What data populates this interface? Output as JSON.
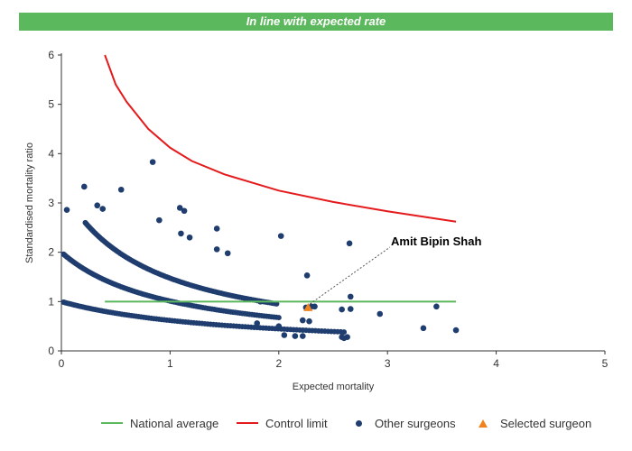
{
  "banner": {
    "text": "In line with expected rate",
    "color": "#5cb85c"
  },
  "colors": {
    "national_average": "#5cb85c",
    "control_limit": "#e41a1c",
    "other_surgeons": "#1f3d6e",
    "selected_surgeon": "#f0831e"
  },
  "legend": {
    "national_average": "National average",
    "control_limit": "Control limit",
    "other_surgeons": "Other surgeons",
    "selected_surgeon": "Selected surgeon"
  },
  "chart_data": {
    "type": "scatter",
    "xlabel": "Expected mortality",
    "ylabel": "Standardised mortality ratio",
    "xlim": [
      0,
      5
    ],
    "ylim": [
      0,
      6
    ],
    "x_ticks": [
      "0",
      "1",
      "2",
      "3",
      "4",
      "5"
    ],
    "y_ticks": [
      "0",
      "1",
      "2",
      "3",
      "4",
      "5",
      "6"
    ],
    "national_average": {
      "y": 1,
      "x_range": [
        0.4,
        3.63
      ]
    },
    "control_limit": {
      "x_range": [
        0.4,
        3.63
      ],
      "points": [
        [
          0.4,
          6.0
        ],
        [
          0.5,
          5.4
        ],
        [
          0.6,
          5.05
        ],
        [
          0.8,
          4.5
        ],
        [
          1.0,
          4.12
        ],
        [
          1.2,
          3.85
        ],
        [
          1.5,
          3.58
        ],
        [
          2.0,
          3.25
        ],
        [
          2.5,
          3.02
        ],
        [
          3.0,
          2.83
        ],
        [
          3.63,
          2.62
        ]
      ]
    },
    "curve_bands": [
      {
        "observed": 1,
        "x_range": [
          0.02,
          2.6
        ]
      },
      {
        "observed": 2,
        "x_range": [
          0.02,
          2.0
        ]
      },
      {
        "observed": 3,
        "x_range": [
          0.22,
          1.98
        ]
      }
    ],
    "other_surgeons": [
      [
        0.05,
        2.86
      ],
      [
        0.21,
        3.33
      ],
      [
        0.33,
        2.95
      ],
      [
        0.38,
        2.88
      ],
      [
        0.55,
        3.27
      ],
      [
        0.84,
        3.83
      ],
      [
        0.9,
        2.65
      ],
      [
        1.09,
        2.9
      ],
      [
        1.13,
        2.84
      ],
      [
        1.1,
        2.38
      ],
      [
        1.18,
        2.3
      ],
      [
        1.43,
        2.48
      ],
      [
        1.43,
        2.06
      ],
      [
        1.53,
        1.98
      ],
      [
        2.02,
        2.33
      ],
      [
        2.65,
        2.18
      ],
      [
        2.26,
        1.53
      ],
      [
        1.83,
        1.0
      ],
      [
        2.22,
        0.62
      ],
      [
        2.28,
        0.6
      ],
      [
        2.25,
        0.88
      ],
      [
        2.3,
        0.9
      ],
      [
        2.33,
        0.9
      ],
      [
        2.58,
        0.84
      ],
      [
        2.66,
        0.85
      ],
      [
        2.66,
        1.1
      ],
      [
        2.93,
        0.75
      ],
      [
        2.58,
        0.28
      ],
      [
        2.63,
        0.28
      ],
      [
        2.6,
        0.26
      ],
      [
        3.33,
        0.46
      ],
      [
        3.45,
        0.9
      ],
      [
        3.63,
        0.42
      ],
      [
        1.8,
        0.56
      ],
      [
        2.0,
        0.5
      ],
      [
        2.15,
        0.3
      ],
      [
        2.22,
        0.3
      ],
      [
        2.05,
        0.32
      ]
    ],
    "selected_surgeon": {
      "name": "Amit Bipin Shah",
      "x": 2.27,
      "y": 0.88
    }
  }
}
